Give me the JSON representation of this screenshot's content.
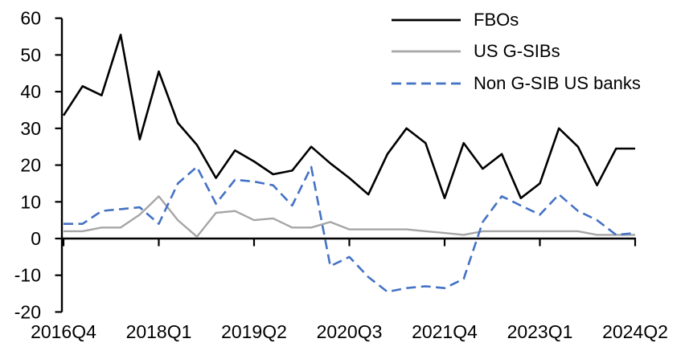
{
  "chart_data": {
    "type": "line",
    "title": "",
    "xlabel": "",
    "ylabel": "",
    "ylim": [
      -20,
      60
    ],
    "y_ticks": [
      60,
      50,
      40,
      30,
      20,
      10,
      0,
      -10,
      -20
    ],
    "x_tick_labels": [
      "2016Q4",
      "2018Q1",
      "2019Q2",
      "2020Q3",
      "2021Q4",
      "2023Q1",
      "2024Q2"
    ],
    "x_tick_indices": [
      0,
      5,
      10,
      15,
      20,
      25,
      30
    ],
    "quarters": [
      "2016Q4",
      "2017Q1",
      "2017Q2",
      "2017Q3",
      "2017Q4",
      "2018Q1",
      "2018Q2",
      "2018Q3",
      "2018Q4",
      "2019Q1",
      "2019Q2",
      "2019Q3",
      "2019Q4",
      "2020Q1",
      "2020Q2",
      "2020Q3",
      "2020Q4",
      "2021Q1",
      "2021Q2",
      "2021Q3",
      "2021Q4",
      "2022Q1",
      "2022Q2",
      "2022Q3",
      "2022Q4",
      "2023Q1",
      "2023Q2",
      "2023Q3",
      "2023Q4",
      "2024Q1",
      "2024Q2"
    ],
    "grid": false,
    "legend_position": "top-right",
    "series": [
      {
        "name": "FBOs",
        "color": "#000000",
        "style": "solid",
        "values": [
          33.5,
          41.5,
          39,
          55.5,
          27,
          45.5,
          31.5,
          25.5,
          16.5,
          24,
          21,
          17.5,
          18.5,
          25,
          20.5,
          16.5,
          12,
          23,
          30,
          26,
          11,
          26,
          19,
          23,
          11,
          15,
          30,
          25,
          14.5,
          24.5,
          24.5
        ]
      },
      {
        "name": "US G-SIBs",
        "color": "#A6A6A6",
        "style": "solid",
        "values": [
          2,
          2,
          3,
          3,
          6.5,
          11.5,
          5,
          0.5,
          7,
          7.5,
          5,
          5.5,
          3,
          3,
          4.5,
          2.5,
          2.5,
          2.5,
          2.5,
          2,
          1.5,
          1,
          2,
          2,
          2,
          2,
          2,
          2,
          1,
          1,
          1
        ]
      },
      {
        "name": "Non G-SIB US banks",
        "color": "#4472C4",
        "style": "dashed",
        "values": [
          4,
          4,
          7.5,
          8,
          8.5,
          4,
          15,
          19.5,
          9.5,
          16,
          15.5,
          14.5,
          9,
          19.5,
          -7.5,
          -5,
          -10.5,
          -14.5,
          -13.5,
          -13,
          -13.5,
          -11,
          4.5,
          11.5,
          9,
          6.5,
          12,
          7.5,
          5,
          1,
          1.5
        ]
      }
    ]
  }
}
